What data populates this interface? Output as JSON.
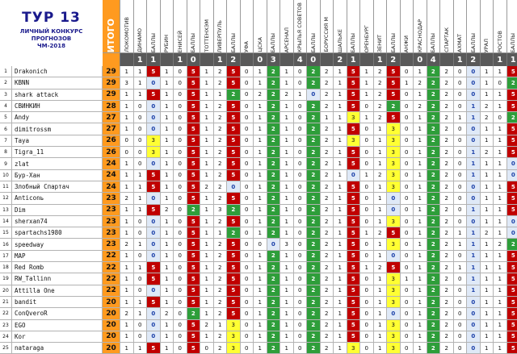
{
  "title": {
    "line1": "ТУР 13",
    "line2": "ЛИЧНЫЙ КОНКУРС",
    "line3": "ПРОГНОЗОВ",
    "line4": "ЧМ-2018"
  },
  "columns": [
    "ИТОГО",
    "ЛОКОМОТИВ",
    "ДИНАМО",
    "БАЛЛЫ",
    "РУБИН",
    "ЕНИСЕЙ",
    "БАЛЛЫ",
    "ТОТТЕНХЭМ",
    "ЛИВЕРПУЛЬ",
    "БАЛЛЫ",
    "УФА",
    "ЦСКА",
    "БАЛЛЫ",
    "АРСЕНАЛ",
    "КРЫЛЬЯ СОВЕТОВ",
    "БАЛЛЫ",
    "БОРУССИЯ М",
    "ШАЛЬКЕ",
    "БАЛЛЫ",
    "ОРЕНБУРГ",
    "ЗЕНИТ",
    "БАЛЛЫ",
    "АНЖИ",
    "КРАСНОДАР",
    "БАЛЛЫ",
    "СПАРТАК",
    "АХМАТ",
    "БАЛЛЫ",
    "УРАЛ",
    "РОСТОВ",
    "БАЛЛЫ"
  ],
  "results": [
    "",
    "1",
    "1",
    "",
    "1",
    "0",
    "",
    "1",
    "2",
    "",
    "0",
    "3",
    "",
    "4",
    "0",
    "",
    "2",
    "1",
    "",
    "1",
    "2",
    "",
    "0",
    "4",
    "",
    "1",
    "2",
    "",
    "1",
    "1",
    ""
  ],
  "rows": [
    {
      "n": "1",
      "name": "Drakonich",
      "total": "29",
      "cells": [
        "1",
        "1",
        "5",
        "1",
        "0",
        "5",
        "1",
        "2",
        "5",
        "0",
        "1",
        "2",
        "1",
        "0",
        "2",
        "2",
        "1",
        "5",
        "1",
        "2",
        "5",
        "0",
        "1",
        "2",
        "2",
        "0",
        "0",
        "1",
        "1",
        "5"
      ]
    },
    {
      "n": "2",
      "name": "KBNN",
      "total": "29",
      "cells": [
        "3",
        "1",
        "0",
        "1",
        "0",
        "5",
        "1",
        "2",
        "5",
        "0",
        "1",
        "2",
        "1",
        "0",
        "2",
        "2",
        "1",
        "5",
        "1",
        "2",
        "5",
        "1",
        "2",
        "2",
        "2",
        "0",
        "0",
        "1",
        "0",
        "2"
      ]
    },
    {
      "n": "3",
      "name": "shark attack",
      "total": "29",
      "cells": [
        "1",
        "1",
        "5",
        "1",
        "0",
        "5",
        "1",
        "1",
        "2",
        "0",
        "2",
        "2",
        "2",
        "1",
        "0",
        "2",
        "1",
        "5",
        "1",
        "2",
        "5",
        "0",
        "1",
        "2",
        "2",
        "0",
        "0",
        "1",
        "1",
        "5"
      ]
    },
    {
      "n": "4",
      "name": "СВИНКИН",
      "total": "28",
      "cells": [
        "1",
        "0",
        "0",
        "1",
        "0",
        "5",
        "1",
        "2",
        "5",
        "0",
        "1",
        "2",
        "1",
        "0",
        "2",
        "2",
        "1",
        "5",
        "0",
        "2",
        "2",
        "0",
        "2",
        "2",
        "2",
        "0",
        "1",
        "2",
        "1",
        "5"
      ]
    },
    {
      "n": "5",
      "name": "Andy",
      "total": "27",
      "cells": [
        "1",
        "0",
        "0",
        "1",
        "0",
        "5",
        "1",
        "2",
        "5",
        "0",
        "1",
        "2",
        "1",
        "0",
        "2",
        "1",
        "1",
        "3",
        "1",
        "2",
        "5",
        "0",
        "1",
        "2",
        "2",
        "1",
        "1",
        "2",
        "0",
        "2"
      ]
    },
    {
      "n": "6",
      "name": "dimitrossm",
      "total": "27",
      "cells": [
        "1",
        "0",
        "0",
        "1",
        "0",
        "5",
        "1",
        "2",
        "5",
        "0",
        "1",
        "2",
        "1",
        "0",
        "2",
        "2",
        "1",
        "5",
        "0",
        "1",
        "3",
        "0",
        "1",
        "2",
        "2",
        "0",
        "0",
        "1",
        "1",
        "5"
      ]
    },
    {
      "n": "7",
      "name": "Taya",
      "total": "26",
      "cells": [
        "0",
        "0",
        "3",
        "1",
        "0",
        "5",
        "1",
        "2",
        "5",
        "0",
        "1",
        "2",
        "1",
        "0",
        "2",
        "2",
        "1",
        "3",
        "0",
        "1",
        "3",
        "0",
        "1",
        "2",
        "2",
        "0",
        "0",
        "1",
        "1",
        "5"
      ]
    },
    {
      "n": "8",
      "name": "Tigra_11",
      "total": "26",
      "cells": [
        "0",
        "0",
        "3",
        "1",
        "0",
        "5",
        "1",
        "2",
        "5",
        "0",
        "1",
        "2",
        "1",
        "0",
        "2",
        "2",
        "1",
        "5",
        "0",
        "1",
        "3",
        "0",
        "1",
        "2",
        "2",
        "0",
        "1",
        "2",
        "1",
        "5"
      ]
    },
    {
      "n": "9",
      "name": "zlat",
      "total": "24",
      "cells": [
        "1",
        "0",
        "0",
        "1",
        "0",
        "5",
        "1",
        "2",
        "5",
        "0",
        "1",
        "2",
        "1",
        "0",
        "2",
        "2",
        "1",
        "5",
        "0",
        "1",
        "3",
        "0",
        "1",
        "2",
        "2",
        "0",
        "1",
        "1",
        "1",
        "0"
      ]
    },
    {
      "n": "10",
      "name": "Бур-Хан",
      "total": "24",
      "cells": [
        "1",
        "1",
        "5",
        "1",
        "0",
        "5",
        "1",
        "2",
        "5",
        "0",
        "1",
        "2",
        "1",
        "0",
        "2",
        "2",
        "1",
        "0",
        "1",
        "2",
        "3",
        "0",
        "1",
        "2",
        "2",
        "0",
        "1",
        "1",
        "1",
        "0"
      ]
    },
    {
      "n": "11",
      "name": "Злобный Спартач",
      "total": "24",
      "cells": [
        "1",
        "1",
        "5",
        "1",
        "0",
        "5",
        "2",
        "2",
        "0",
        "0",
        "1",
        "2",
        "1",
        "0",
        "2",
        "2",
        "1",
        "5",
        "0",
        "1",
        "3",
        "0",
        "1",
        "2",
        "2",
        "0",
        "0",
        "1",
        "1",
        "5"
      ]
    },
    {
      "n": "12",
      "name": "Anticonь",
      "total": "23",
      "cells": [
        "2",
        "1",
        "0",
        "1",
        "0",
        "5",
        "1",
        "2",
        "5",
        "0",
        "1",
        "2",
        "1",
        "0",
        "2",
        "2",
        "1",
        "5",
        "0",
        "1",
        "0",
        "0",
        "1",
        "2",
        "2",
        "0",
        "0",
        "1",
        "1",
        "5"
      ]
    },
    {
      "n": "13",
      "name": "Dim",
      "total": "23",
      "cells": [
        "1",
        "1",
        "5",
        "2",
        "0",
        "2",
        "1",
        "3",
        "2",
        "0",
        "1",
        "2",
        "1",
        "0",
        "2",
        "2",
        "1",
        "5",
        "0",
        "1",
        "0",
        "0",
        "1",
        "2",
        "2",
        "0",
        "1",
        "1",
        "1",
        "5"
      ]
    },
    {
      "n": "14",
      "name": "sherxan74",
      "total": "23",
      "cells": [
        "1",
        "0",
        "0",
        "1",
        "0",
        "5",
        "1",
        "2",
        "5",
        "0",
        "1",
        "2",
        "1",
        "0",
        "2",
        "2",
        "1",
        "5",
        "0",
        "1",
        "3",
        "0",
        "1",
        "2",
        "2",
        "0",
        "0",
        "1",
        "1",
        "0"
      ]
    },
    {
      "n": "15",
      "name": "spartachs1980",
      "total": "23",
      "cells": [
        "1",
        "0",
        "0",
        "1",
        "0",
        "5",
        "1",
        "1",
        "2",
        "0",
        "1",
        "2",
        "1",
        "0",
        "2",
        "2",
        "1",
        "5",
        "1",
        "2",
        "5",
        "0",
        "1",
        "2",
        "2",
        "1",
        "1",
        "2",
        "1",
        "0"
      ]
    },
    {
      "n": "16",
      "name": "speedway",
      "total": "23",
      "cells": [
        "2",
        "1",
        "0",
        "1",
        "0",
        "5",
        "1",
        "2",
        "5",
        "0",
        "0",
        "0",
        "3",
        "0",
        "2",
        "2",
        "1",
        "5",
        "0",
        "1",
        "3",
        "0",
        "1",
        "2",
        "2",
        "1",
        "1",
        "1",
        "2",
        "2"
      ]
    },
    {
      "n": "17",
      "name": "MAP",
      "total": "22",
      "cells": [
        "1",
        "0",
        "0",
        "1",
        "0",
        "5",
        "1",
        "2",
        "5",
        "0",
        "1",
        "2",
        "1",
        "0",
        "2",
        "2",
        "1",
        "5",
        "0",
        "1",
        "0",
        "0",
        "1",
        "2",
        "2",
        "0",
        "1",
        "1",
        "1",
        "5"
      ]
    },
    {
      "n": "18",
      "name": "Red Romb",
      "total": "22",
      "cells": [
        "1",
        "1",
        "5",
        "1",
        "0",
        "5",
        "1",
        "2",
        "5",
        "0",
        "1",
        "2",
        "1",
        "0",
        "2",
        "2",
        "1",
        "5",
        "1",
        "2",
        "5",
        "0",
        "1",
        "2",
        "2",
        "1",
        "1",
        "1",
        "1",
        "5"
      ]
    },
    {
      "n": "19",
      "name": "RW_Tallinn",
      "total": "22",
      "cells": [
        "1",
        "0",
        "5",
        "1",
        "0",
        "5",
        "1",
        "2",
        "5",
        "0",
        "1",
        "2",
        "1",
        "0",
        "2",
        "2",
        "1",
        "5",
        "0",
        "1",
        "3",
        "1",
        "1",
        "2",
        "2",
        "0",
        "1",
        "1",
        "1",
        "5"
      ]
    },
    {
      "n": "20",
      "name": "Attilla One",
      "total": "22",
      "cells": [
        "1",
        "0",
        "0",
        "1",
        "0",
        "5",
        "1",
        "2",
        "5",
        "0",
        "1",
        "2",
        "1",
        "0",
        "2",
        "2",
        "1",
        "5",
        "0",
        "1",
        "3",
        "0",
        "1",
        "2",
        "2",
        "0",
        "1",
        "1",
        "1",
        "5"
      ]
    },
    {
      "n": "21",
      "name": "bandit",
      "total": "20",
      "cells": [
        "1",
        "1",
        "5",
        "1",
        "0",
        "5",
        "1",
        "2",
        "5",
        "0",
        "1",
        "2",
        "1",
        "0",
        "2",
        "2",
        "1",
        "5",
        "0",
        "1",
        "3",
        "0",
        "1",
        "2",
        "2",
        "0",
        "0",
        "1",
        "1",
        "5"
      ]
    },
    {
      "n": "22",
      "name": "ConQveroR",
      "total": "20",
      "cells": [
        "2",
        "1",
        "0",
        "2",
        "0",
        "2",
        "1",
        "2",
        "5",
        "0",
        "1",
        "2",
        "1",
        "0",
        "2",
        "2",
        "1",
        "5",
        "0",
        "1",
        "0",
        "0",
        "1",
        "2",
        "2",
        "0",
        "0",
        "1",
        "1",
        "5"
      ]
    },
    {
      "n": "23",
      "name": "EGO",
      "total": "20",
      "cells": [
        "1",
        "0",
        "0",
        "1",
        "0",
        "5",
        "2",
        "1",
        "3",
        "0",
        "1",
        "2",
        "1",
        "0",
        "2",
        "2",
        "1",
        "5",
        "0",
        "1",
        "3",
        "0",
        "1",
        "2",
        "2",
        "0",
        "0",
        "1",
        "1",
        "5"
      ]
    },
    {
      "n": "24",
      "name": "Kor",
      "total": "20",
      "cells": [
        "1",
        "0",
        "0",
        "1",
        "0",
        "5",
        "1",
        "2",
        "3",
        "0",
        "1",
        "2",
        "1",
        "0",
        "2",
        "2",
        "1",
        "5",
        "0",
        "1",
        "3",
        "0",
        "1",
        "2",
        "2",
        "0",
        "0",
        "1",
        "1",
        "5"
      ]
    },
    {
      "n": "25",
      "name": "nataraga",
      "total": "20",
      "cells": [
        "1",
        "1",
        "5",
        "1",
        "0",
        "5",
        "0",
        "2",
        "3",
        "0",
        "1",
        "2",
        "1",
        "0",
        "2",
        "2",
        "1",
        "3",
        "0",
        "1",
        "3",
        "0",
        "1",
        "2",
        "2",
        "0",
        "0",
        "1",
        "1",
        "5"
      ]
    }
  ]
}
